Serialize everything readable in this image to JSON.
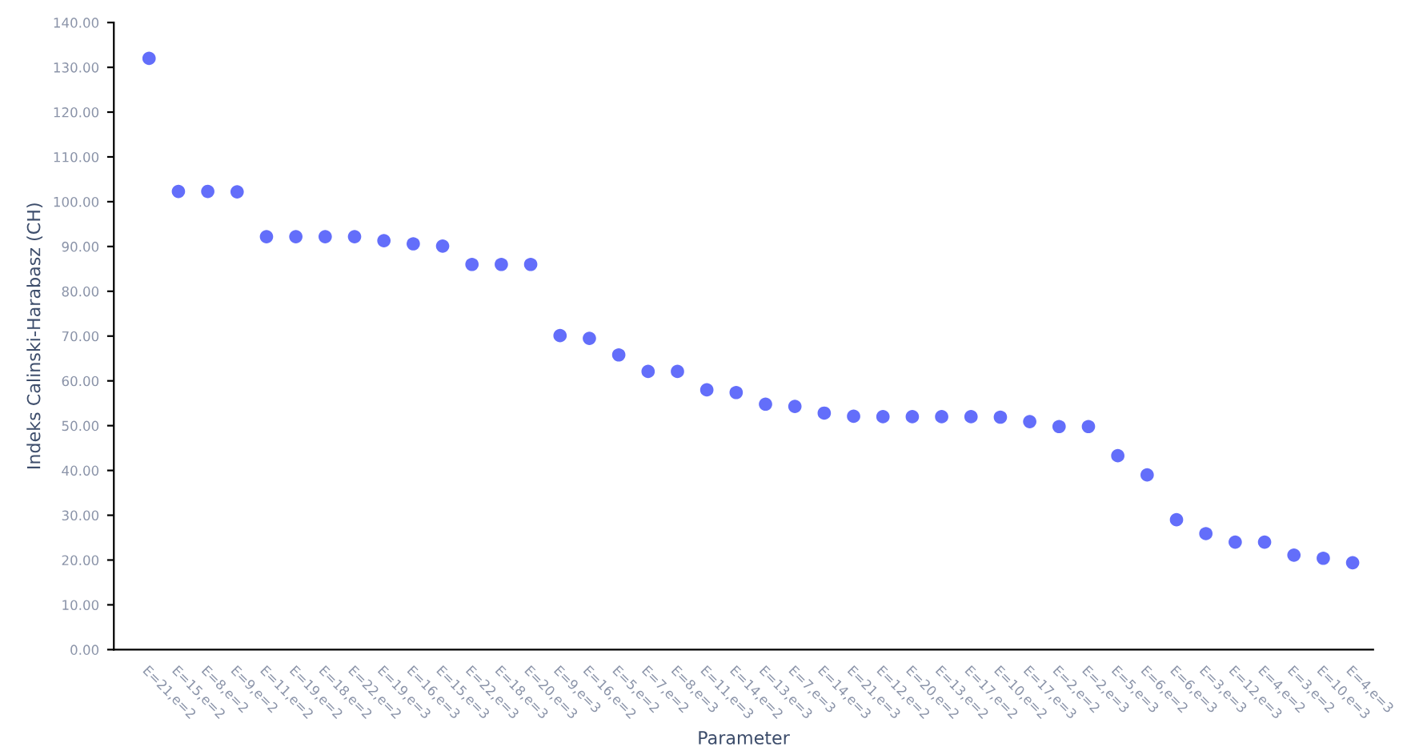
{
  "chart_data": {
    "type": "scatter",
    "xlabel": "Parameter",
    "ylabel": "Indeks Calinski-Harabasz (CH)",
    "categories": [
      "E=21,e=2",
      "E=15,e=2",
      "E=8,e=2",
      "E=9,e=2",
      "E=11,e=2",
      "E=19,e=2",
      "E=18,e=2",
      "E=22,e=2",
      "E=19,e=3",
      "E=16,e=3",
      "E=15,e=3",
      "E=22,e=3",
      "E=18,e=3",
      "E=20,e=3",
      "E=9,e=3",
      "E=16,e=2",
      "E=5,e=2",
      "E=7,e=2",
      "E=8,e=3",
      "E=11,e=3",
      "E=14,e=2",
      "E=13,e=3",
      "E=7,e=3",
      "E=14,e=3",
      "E=21,e=3",
      "E=12,e=2",
      "E=20,e=2",
      "E=13,e=2",
      "E=17,e=2",
      "E=10,e=2",
      "E=17,e=3",
      "E=2,e=2",
      "E=2,e=3",
      "E=5,e=3",
      "E=6,e=2",
      "E=6,e=3",
      "E=3,e=3",
      "E=12,e=3",
      "E=4,e=2",
      "E=3,e=2",
      "E=10,e=3",
      "E=4,e=3"
    ],
    "series": [
      {
        "color": "#636efa",
        "values": [
          132,
          102.3,
          102.3,
          102.2,
          92.2,
          92.2,
          92.2,
          92.2,
          91.3,
          90.6,
          90.1,
          86,
          86,
          86,
          70.1,
          69.5,
          65.8,
          62.1,
          62.1,
          58,
          57.4,
          54.8,
          54.3,
          52.8,
          52.1,
          52,
          52,
          52,
          52,
          51.9,
          50.9,
          49.8,
          49.8,
          43.3,
          39,
          29,
          25.9,
          24,
          24,
          21.1,
          20.4,
          19.4
        ]
      }
    ],
    "ylim": [
      0,
      140
    ],
    "yticks": [
      {
        "value": 0,
        "label": "0.00"
      },
      {
        "value": 10,
        "label": "10.00"
      },
      {
        "value": 20,
        "label": "20.00"
      },
      {
        "value": 30,
        "label": "30.00"
      },
      {
        "value": 40,
        "label": "40.00"
      },
      {
        "value": 50,
        "label": "50.00"
      },
      {
        "value": 60,
        "label": "60.00"
      },
      {
        "value": 70,
        "label": "70.00"
      },
      {
        "value": 80,
        "label": "80.00"
      },
      {
        "value": 90,
        "label": "90.00"
      },
      {
        "value": 100,
        "label": "100.00"
      },
      {
        "value": 110,
        "label": "110.00"
      },
      {
        "value": 120,
        "label": "120.00"
      },
      {
        "value": 130,
        "label": "130.00"
      },
      {
        "value": 140,
        "label": "140.00"
      }
    ],
    "grid": false,
    "marker": "circle"
  }
}
